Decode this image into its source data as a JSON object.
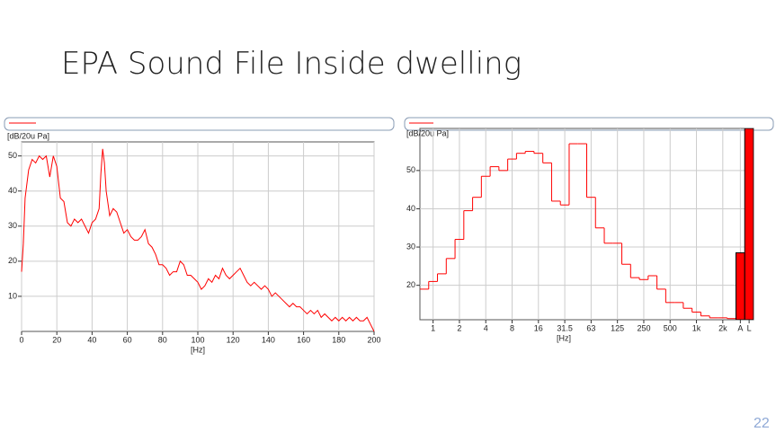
{
  "header": {
    "title": "EPA Sound File Inside dwelling"
  },
  "page_number": "22",
  "chart_data": [
    {
      "type": "line",
      "x_label": "[Hz]",
      "y_label": "[dB/20u Pa]",
      "color": "#ff0000",
      "grid": true,
      "x": [
        0,
        1,
        2,
        4,
        6,
        8,
        10,
        12,
        14,
        16,
        18,
        20,
        22,
        24,
        26,
        28,
        30,
        32,
        34,
        36,
        38,
        40,
        42,
        44,
        45,
        46,
        47,
        48,
        50,
        52,
        54,
        56,
        58,
        60,
        62,
        64,
        66,
        68,
        70,
        72,
        74,
        76,
        78,
        80,
        82,
        84,
        86,
        88,
        90,
        92,
        94,
        96,
        98,
        100,
        102,
        104,
        106,
        108,
        110,
        112,
        114,
        116,
        118,
        120,
        122,
        124,
        126,
        128,
        130,
        132,
        134,
        136,
        138,
        140,
        142,
        144,
        146,
        148,
        150,
        152,
        154,
        156,
        158,
        160,
        162,
        164,
        166,
        168,
        170,
        172,
        174,
        176,
        178,
        180,
        182,
        184,
        186,
        188,
        190,
        192,
        194,
        196,
        198,
        200
      ],
      "values": [
        17,
        25,
        38,
        46,
        49,
        48,
        50,
        49,
        50,
        44,
        50,
        47,
        38,
        37,
        31,
        30,
        32,
        31,
        32,
        30,
        28,
        31,
        32,
        35,
        45,
        52,
        48,
        40,
        33,
        35,
        34,
        31,
        28,
        29,
        27,
        26,
        26,
        27,
        29,
        25,
        24,
        22,
        19,
        19,
        18,
        16,
        17,
        17,
        20,
        19,
        16,
        16,
        15,
        14,
        12,
        13,
        15,
        14,
        16,
        15,
        18,
        16,
        15,
        16,
        17,
        18,
        16,
        14,
        13,
        14,
        13,
        12,
        13,
        12,
        10,
        11,
        10,
        9,
        8,
        7,
        8,
        7,
        7,
        6,
        5,
        6,
        5,
        6,
        4,
        5,
        4,
        3,
        4,
        3,
        4,
        3,
        4,
        3,
        4,
        3,
        3,
        4,
        2,
        0
      ],
      "xlim": [
        0,
        200
      ],
      "xticks": [
        0,
        20,
        40,
        60,
        80,
        100,
        120,
        140,
        160,
        180,
        200
      ],
      "ylim": [
        0,
        54
      ],
      "yticks": [
        10,
        20,
        30,
        40,
        50
      ]
    },
    {
      "type": "step",
      "x_label": "[Hz]",
      "y_label": "[dB/20u Pa]",
      "grid": true,
      "categories": [
        null,
        "1",
        null,
        null,
        "2",
        null,
        null,
        "4",
        null,
        null,
        "8",
        null,
        null,
        "16",
        null,
        null,
        "31.5",
        null,
        null,
        "63",
        null,
        null,
        "125",
        null,
        null,
        "250",
        null,
        null,
        "500",
        null,
        null,
        "1k",
        null,
        null,
        "2k",
        null,
        "A",
        "L"
      ],
      "series": [
        {
          "color": "#ff0000",
          "style": "step",
          "values": [
            19,
            21,
            23,
            27,
            32,
            39.5,
            43,
            48.5,
            51,
            50,
            53,
            54.5,
            55,
            54.5,
            52,
            42,
            41,
            57,
            57,
            43,
            35,
            31,
            31,
            25.5,
            22,
            21.5,
            22.5,
            19,
            15.5,
            15.5,
            14,
            13,
            12,
            11.5,
            11.5,
            11.3,
            null,
            null
          ]
        },
        {
          "color": "#ff0000",
          "style": "bar",
          "values": [
            null,
            null,
            null,
            null,
            null,
            null,
            null,
            null,
            null,
            null,
            null,
            null,
            null,
            null,
            null,
            null,
            null,
            null,
            null,
            null,
            null,
            null,
            null,
            null,
            null,
            null,
            null,
            null,
            null,
            null,
            null,
            null,
            null,
            null,
            null,
            null,
            28.5,
            61
          ]
        }
      ],
      "ylim": [
        11,
        61
      ],
      "yticks": [
        20,
        30,
        40,
        50
      ]
    }
  ]
}
